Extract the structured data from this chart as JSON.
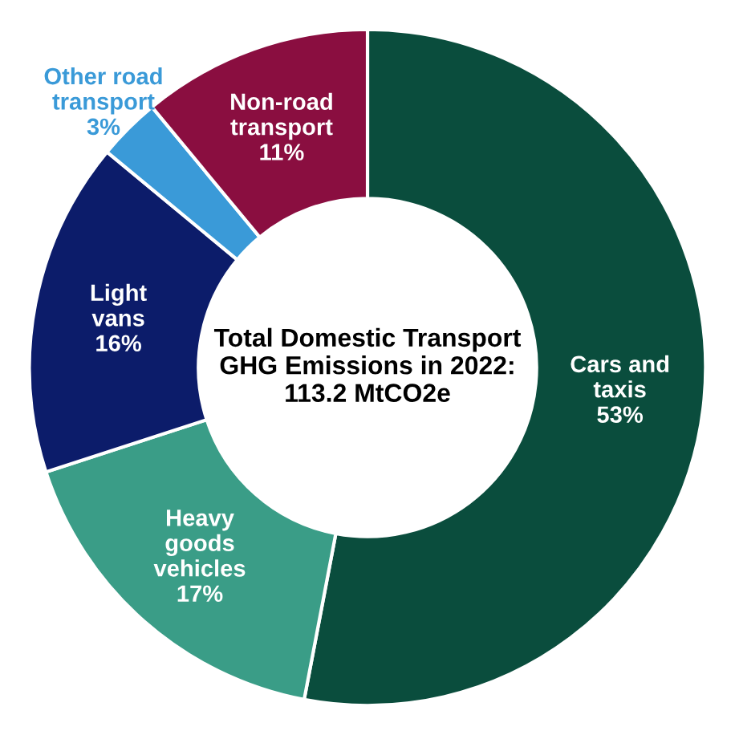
{
  "chart_data": {
    "type": "donut",
    "title": "Total Domestic Transport\nGHG Emissions in 2022:\n113.2 MtCO2e",
    "categories": [
      "Cars and\ntaxis",
      "Heavy\ngoods\nvehicles",
      "Light\nvans",
      "Other road\ntransport",
      "Non-road\ntransport"
    ],
    "values": [
      53,
      17,
      16,
      3,
      11
    ],
    "value_labels": [
      "53%",
      "17%",
      "16%",
      "3%",
      "11%"
    ],
    "colors": [
      "#0a4d3d",
      "#3a9d87",
      "#0c1c6a",
      "#3a9ad8",
      "#8a0e40"
    ],
    "legend": false
  }
}
